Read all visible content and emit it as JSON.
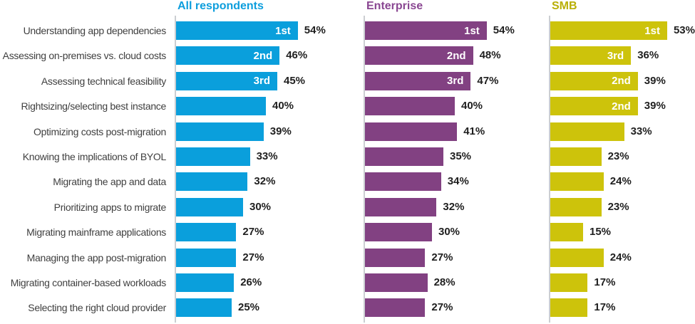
{
  "chart_data": {
    "type": "bar",
    "orientation": "horizontal",
    "unit": "%",
    "value_labels": true,
    "grid": false,
    "legend_position": "column-headers-top",
    "xlim": [
      0,
      60
    ],
    "axis_line_color": "#cbced2",
    "category_label_color": "#3f3f3f",
    "value_label_color": "#1f1f1f",
    "rank_label_color": "#ffffff",
    "categories": [
      "Understanding app dependencies",
      "Assessing on-premises vs. cloud costs",
      "Assessing technical feasibility",
      "Rightsizing/selecting best instance",
      "Optimizing costs post-migration",
      "Knowing the implications of BYOL",
      "Migrating the app and data",
      "Prioritizing apps to migrate",
      "Migrating mainframe applications",
      "Managing the app post-migration",
      "Migrating container-based workloads",
      "Selecting the right cloud provider"
    ],
    "series": [
      {
        "name": "All respondents",
        "color": "#0a9fdc",
        "header_color": "#0d9edd",
        "values": [
          54,
          46,
          45,
          40,
          39,
          33,
          32,
          30,
          27,
          27,
          26,
          25
        ],
        "ranks": [
          "1st",
          "2nd",
          "3rd",
          "",
          "",
          "",
          "",
          "",
          "",
          "",
          "",
          ""
        ]
      },
      {
        "name": "Enterprise",
        "color": "#824182",
        "header_color": "#8a4792",
        "values": [
          54,
          48,
          47,
          40,
          41,
          35,
          34,
          32,
          30,
          27,
          28,
          27
        ],
        "ranks": [
          "1st",
          "2nd",
          "3rd",
          "",
          "",
          "",
          "",
          "",
          "",
          "",
          "",
          ""
        ]
      },
      {
        "name": "SMB",
        "color": "#cdc30b",
        "header_color": "#b9af06",
        "values": [
          53,
          36,
          39,
          39,
          33,
          23,
          24,
          23,
          15,
          24,
          17,
          17
        ],
        "ranks": [
          "1st",
          "3rd",
          "2nd",
          "2nd",
          "",
          "",
          "",
          "",
          "",
          "",
          "",
          ""
        ]
      }
    ]
  }
}
